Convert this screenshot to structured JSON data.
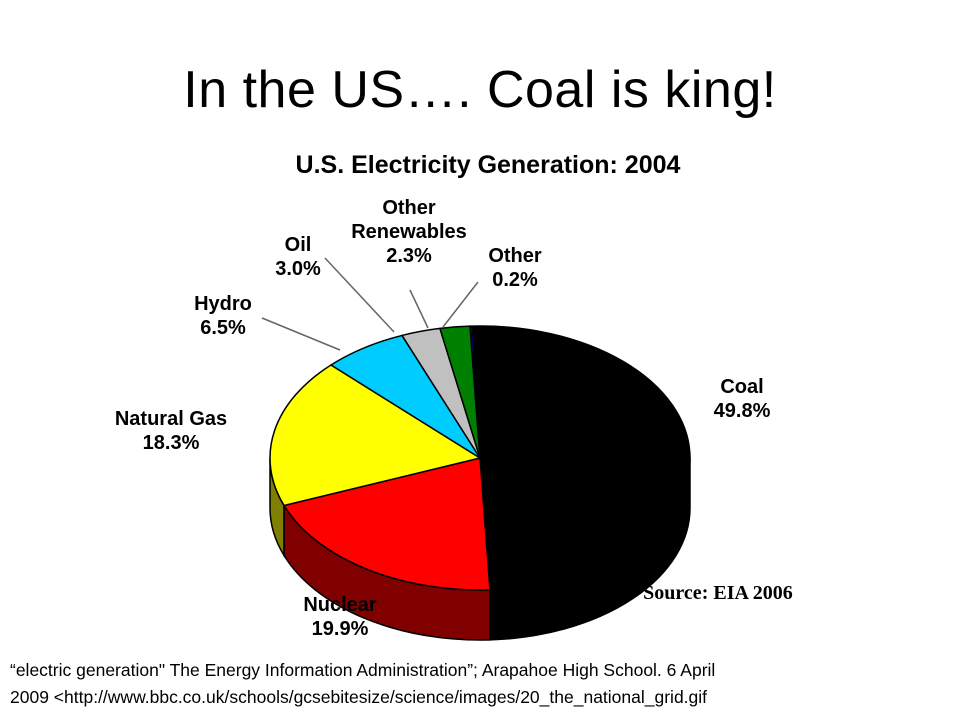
{
  "slide": {
    "title": "In the US…. Coal is king!",
    "citation_line1": "“electric generation\" The Energy Information Administration”;  Arapahoe High School.  6 April",
    "citation_line2": "2009  <http://www.bbc.co.uk/schools/gcsebitesize/science/images/20_the_national_grid.gif"
  },
  "chart_data": {
    "type": "pie",
    "title": "U.S. Electricity Generation: 2004",
    "source": "Source: EIA 2006",
    "slices": [
      {
        "label": "Coal",
        "value": 49.8,
        "value_label": "49.8%",
        "color": "#000000",
        "side_color": "#000000"
      },
      {
        "label": "Nuclear",
        "value": 19.9,
        "value_label": "19.9%",
        "color": "#ff0000",
        "side_color": "#800000"
      },
      {
        "label": "Natural Gas",
        "value": 18.3,
        "value_label": "18.3%",
        "color": "#ffff00",
        "side_color": "#808000"
      },
      {
        "label": "Hydro",
        "value": 6.5,
        "value_label": "6.5%",
        "color": "#00ccff",
        "side_color": "#006680"
      },
      {
        "label": "Oil",
        "value": 3.0,
        "value_label": "3.0%",
        "color": "#c0c0c0",
        "side_color": "#606060"
      },
      {
        "label": "Other Renewables",
        "value": 2.3,
        "value_label": "2.3%",
        "color": "#008000",
        "side_color": "#004000"
      },
      {
        "label": "Other",
        "value": 0.2,
        "value_label": "0.2%",
        "color": "#000080",
        "side_color": "#000040"
      }
    ]
  }
}
